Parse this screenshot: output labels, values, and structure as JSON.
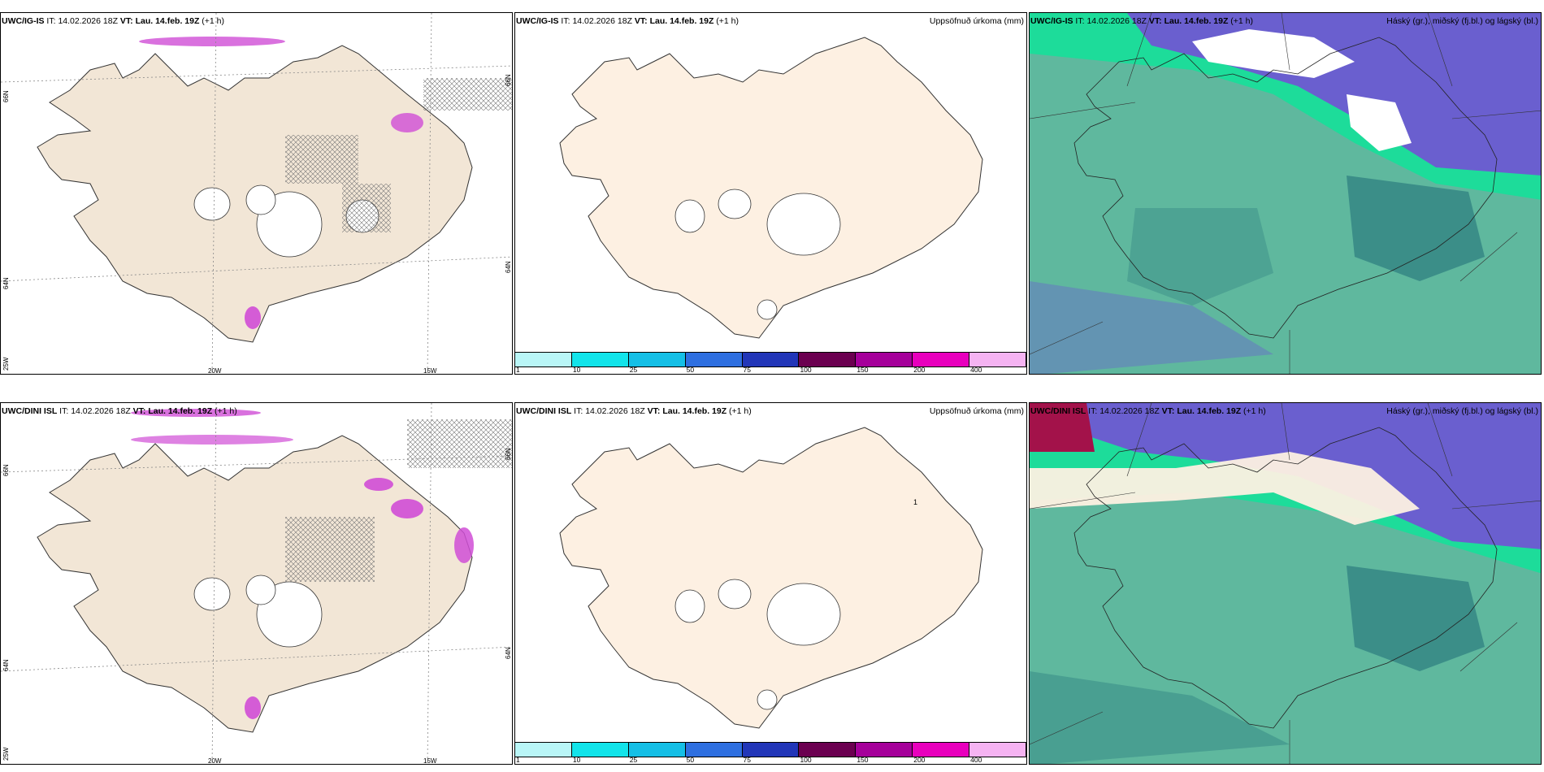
{
  "panels": [
    {
      "model": "UWC/IG-IS",
      "it_label": "IT:",
      "it_value": "14.02.2026 18Z",
      "vt_label": "VT:",
      "vt_value": "Lau. 14.feb. 19Z",
      "offset": "(+1 h)",
      "right_title": "",
      "coords": {
        "lat_top": "66N",
        "lat_mid": "64N",
        "lat_bot": "25W",
        "lon_left": "20W",
        "lon_right": "15W",
        "right_top": "66N",
        "right_mid": "64N"
      }
    },
    {
      "model": "UWC/IG-IS",
      "it_label": "IT:",
      "it_value": "14.02.2026 18Z",
      "vt_label": "VT:",
      "vt_value": "Lau. 14.feb. 19Z",
      "offset": "(+1 h)",
      "right_title": "Uppsöfnuð úrkoma (mm)"
    },
    {
      "model": "UWC/IG-IS",
      "it_label": "IT:",
      "it_value": "14.02.2026 18Z",
      "vt_label": "VT:",
      "vt_value": "Lau. 14.feb. 19Z",
      "offset": "(+1 h)",
      "right_title": "Háský (gr.), miðský (fj.bl.) og lágský (bl.)"
    },
    {
      "model": "UWC/DINI ISL",
      "it_label": "IT:",
      "it_value": "14.02.2026 18Z",
      "vt_label": "VT:",
      "vt_value": "Lau. 14.feb. 19Z",
      "offset": "(+1 h)",
      "right_title": "",
      "coords": {
        "lat_top": "66N",
        "lat_mid": "64N",
        "lat_bot": "25W",
        "lon_left": "20W",
        "lon_right": "15W",
        "right_top": "66N",
        "right_mid": "64N"
      }
    },
    {
      "model": "UWC/DINI ISL",
      "it_label": "IT:",
      "it_value": "14.02.2026 18Z",
      "vt_label": "VT:",
      "vt_value": "Lau. 14.feb. 19Z",
      "offset": "(+1 h)",
      "right_title": "Uppsöfnuð úrkoma (mm)",
      "point_label": "1"
    },
    {
      "model": "UWC/DINI ISL",
      "it_label": "IT:",
      "it_value": "14.02.2026 18Z",
      "vt_label": "VT:",
      "vt_value": "Lau. 14.feb. 19Z",
      "offset": "(+1 h)",
      "right_title": "Háský (gr.), miðský (fj.bl.) og lágský (bl.)"
    }
  ],
  "colorbar": {
    "labels": [
      "1",
      "10",
      "25",
      "50",
      "75",
      "100",
      "150",
      "200",
      "400"
    ],
    "colors": [
      "#b9f6f7",
      "#12e4ea",
      "#15bfe6",
      "#2e6fe0",
      "#2236b8",
      "#6b0050",
      "#a5009a",
      "#e800bd",
      "#f5b3f2"
    ]
  },
  "map_colors": {
    "land": "#f2e6d6",
    "land_precip": "#fdf0e2",
    "ocean": "#ffffff",
    "cloud_low": "#5fb89e",
    "cloud_low_dark": "#3b8e88",
    "cloud_mid": "#6a5fcf",
    "cloud_high": "#1ddc9a",
    "precip_pink": "#d04dd6"
  }
}
